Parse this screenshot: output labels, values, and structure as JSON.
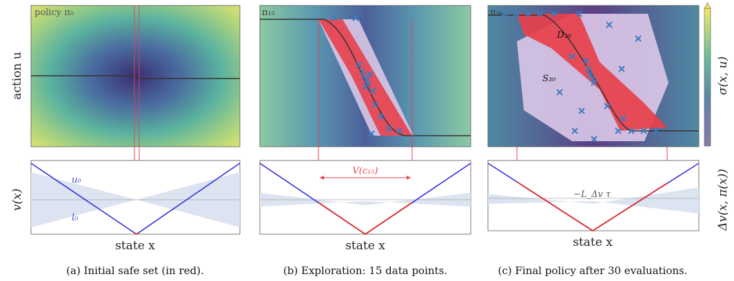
{
  "figure": {
    "y_axis_top": "action u",
    "y_axis_bottom": "v(x)",
    "x_axis": "state x",
    "colorbar_label": "σ(x, u)",
    "right_axis_bottom": "Δv(x, π(x))",
    "panels": [
      {
        "inset_label": "policy π₀",
        "caption": "(a)  Initial safe set (in red).",
        "annotations": {
          "upper": "u₀",
          "lower": "l₀"
        }
      },
      {
        "inset_label": "π₁₅",
        "caption": "(b)  Exploration: 15 data points.",
        "annotations": {
          "interval": "V(c₁₅)"
        }
      },
      {
        "inset_label": "π₃₀",
        "caption": "(c)  Final policy after 30 evaluations.",
        "annotations": {
          "safe_set": "S₃₀",
          "data_set": "D₃₀",
          "threshold": "−L_Δv τ"
        }
      }
    ]
  },
  "colors": {
    "safe_red": "#e8404b",
    "explore_lavender": "#d9c6e6",
    "points_blue": "#3d7bbf",
    "policy_line": "#333333",
    "lyapunov_blue": "#3030e0",
    "lyapunov_red": "#e02a2a",
    "band": "#dbe4f0"
  },
  "chart_data": [
    {
      "type": "heatmap",
      "xlabel": "state x",
      "ylabel": "action u",
      "data_points": 0,
      "policy_shape": "nearly flat with small drop at x=0"
    },
    {
      "type": "heatmap",
      "xlabel": "state x",
      "ylabel": "action u",
      "data_points": 15
    },
    {
      "type": "heatmap",
      "xlabel": "state x",
      "ylabel": "action u",
      "data_points": 30
    }
  ]
}
